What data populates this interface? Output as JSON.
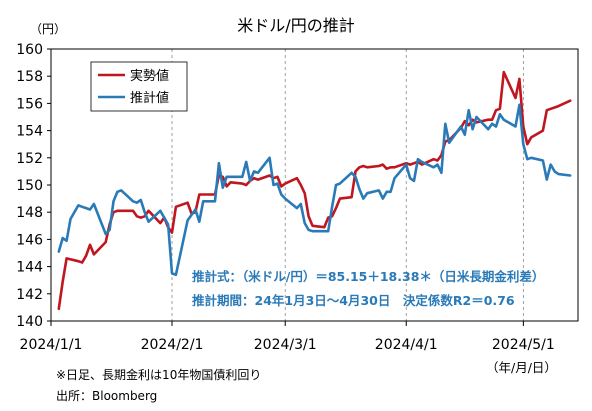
{
  "chart_data": {
    "type": "line",
    "title": "米ドル/円の推計",
    "y_unit_label": "（円）",
    "x_unit_label": "（年/月/日）",
    "x_tick_labels": [
      "2024/1/1",
      "2024/2/1",
      "2024/3/1",
      "2024/4/1",
      "2024/5/1"
    ],
    "y_ticks": [
      140,
      142,
      144,
      146,
      148,
      150,
      152,
      154,
      156,
      158,
      160
    ],
    "ylim": [
      140,
      160
    ],
    "xlim": [
      "2024-01-01",
      "2024-05-15"
    ],
    "grid": "vertical dashed",
    "legend_placement": "top-left",
    "series": [
      {
        "name": "実勢値",
        "color": "#c0161f",
        "points": [
          [
            "2024-01-03",
            140.9
          ],
          [
            "2024-01-04",
            142.9
          ],
          [
            "2024-01-05",
            144.6
          ],
          [
            "2024-01-08",
            144.4
          ],
          [
            "2024-01-09",
            144.3
          ],
          [
            "2024-01-10",
            144.8
          ],
          [
            "2024-01-11",
            145.6
          ],
          [
            "2024-01-12",
            144.9
          ],
          [
            "2024-01-15",
            145.8
          ],
          [
            "2024-01-16",
            147.1
          ],
          [
            "2024-01-17",
            148.0
          ],
          [
            "2024-01-18",
            148.1
          ],
          [
            "2024-01-19",
            148.1
          ],
          [
            "2024-01-22",
            148.1
          ],
          [
            "2024-01-23",
            147.7
          ],
          [
            "2024-01-24",
            147.6
          ],
          [
            "2024-01-25",
            147.7
          ],
          [
            "2024-01-26",
            148.1
          ],
          [
            "2024-01-29",
            147.2
          ],
          [
            "2024-01-30",
            147.6
          ],
          [
            "2024-01-31",
            146.9
          ],
          [
            "2024-02-01",
            146.5
          ],
          [
            "2024-02-02",
            148.4
          ],
          [
            "2024-02-05",
            148.7
          ],
          [
            "2024-02-06",
            147.9
          ],
          [
            "2024-02-07",
            148.0
          ],
          [
            "2024-02-08",
            149.3
          ],
          [
            "2024-02-09",
            149.3
          ],
          [
            "2024-02-12",
            149.3
          ],
          [
            "2024-02-13",
            150.7
          ],
          [
            "2024-02-14",
            150.6
          ],
          [
            "2024-02-15",
            149.9
          ],
          [
            "2024-02-16",
            150.2
          ],
          [
            "2024-02-19",
            150.1
          ],
          [
            "2024-02-20",
            150.0
          ],
          [
            "2024-02-21",
            150.3
          ],
          [
            "2024-02-22",
            150.5
          ],
          [
            "2024-02-23",
            150.4
          ],
          [
            "2024-02-26",
            150.7
          ],
          [
            "2024-02-27",
            150.5
          ],
          [
            "2024-02-28",
            150.6
          ],
          [
            "2024-02-29",
            149.9
          ],
          [
            "2024-03-01",
            150.1
          ],
          [
            "2024-03-04",
            150.5
          ],
          [
            "2024-03-05",
            150.0
          ],
          [
            "2024-03-06",
            149.4
          ],
          [
            "2024-03-07",
            147.7
          ],
          [
            "2024-03-08",
            147.0
          ],
          [
            "2024-03-11",
            146.9
          ],
          [
            "2024-03-12",
            147.6
          ],
          [
            "2024-03-13",
            147.7
          ],
          [
            "2024-03-14",
            148.3
          ],
          [
            "2024-03-15",
            149.0
          ],
          [
            "2024-03-18",
            149.1
          ],
          [
            "2024-03-19",
            151.0
          ],
          [
            "2024-03-20",
            151.3
          ],
          [
            "2024-03-21",
            151.4
          ],
          [
            "2024-03-22",
            151.3
          ],
          [
            "2024-03-25",
            151.4
          ],
          [
            "2024-03-26",
            151.5
          ],
          [
            "2024-03-27",
            151.2
          ],
          [
            "2024-03-28",
            151.3
          ],
          [
            "2024-03-29",
            151.3
          ],
          [
            "2024-04-01",
            151.6
          ],
          [
            "2024-04-02",
            151.5
          ],
          [
            "2024-04-03",
            151.6
          ],
          [
            "2024-04-04",
            151.7
          ],
          [
            "2024-04-05",
            151.5
          ],
          [
            "2024-04-08",
            151.9
          ],
          [
            "2024-04-09",
            151.8
          ],
          [
            "2024-04-10",
            152.2
          ],
          [
            "2024-04-11",
            153.2
          ],
          [
            "2024-04-12",
            153.3
          ],
          [
            "2024-04-15",
            154.2
          ],
          [
            "2024-04-16",
            154.7
          ],
          [
            "2024-04-17",
            154.4
          ],
          [
            "2024-04-18",
            154.8
          ],
          [
            "2024-04-19",
            154.6
          ],
          [
            "2024-04-22",
            154.8
          ],
          [
            "2024-04-23",
            154.8
          ],
          [
            "2024-04-24",
            155.5
          ],
          [
            "2024-04-25",
            155.6
          ],
          [
            "2024-04-26",
            158.3
          ],
          [
            "2024-04-29",
            156.4
          ],
          [
            "2024-04-30",
            157.8
          ],
          [
            "2024-05-01",
            154.3
          ],
          [
            "2024-05-02",
            153.0
          ],
          [
            "2024-05-03",
            153.5
          ],
          [
            "2024-05-06",
            154.0
          ],
          [
            "2024-05-07",
            155.5
          ],
          [
            "2024-05-08",
            155.6
          ],
          [
            "2024-05-09",
            155.7
          ],
          [
            "2024-05-10",
            155.8
          ],
          [
            "2024-05-13",
            156.2
          ]
        ]
      },
      {
        "name": "推計値",
        "color": "#2a7ab8",
        "points": [
          [
            "2024-01-03",
            145.1
          ],
          [
            "2024-01-04",
            146.1
          ],
          [
            "2024-01-05",
            145.9
          ],
          [
            "2024-01-06",
            147.5
          ],
          [
            "2024-01-08",
            148.5
          ],
          [
            "2024-01-09",
            148.4
          ],
          [
            "2024-01-10",
            148.3
          ],
          [
            "2024-01-11",
            148.2
          ],
          [
            "2024-01-12",
            148.6
          ],
          [
            "2024-01-15",
            146.4
          ],
          [
            "2024-01-16",
            146.7
          ],
          [
            "2024-01-17",
            148.8
          ],
          [
            "2024-01-18",
            149.5
          ],
          [
            "2024-01-19",
            149.6
          ],
          [
            "2024-01-22",
            148.8
          ],
          [
            "2024-01-23",
            148.7
          ],
          [
            "2024-01-24",
            148.9
          ],
          [
            "2024-01-25",
            148.0
          ],
          [
            "2024-01-26",
            147.3
          ],
          [
            "2024-01-29",
            148.1
          ],
          [
            "2024-01-30",
            147.6
          ],
          [
            "2024-01-31",
            147.1
          ],
          [
            "2024-02-01",
            143.5
          ],
          [
            "2024-02-02",
            143.4
          ],
          [
            "2024-02-05",
            147.4
          ],
          [
            "2024-02-06",
            147.8
          ],
          [
            "2024-02-07",
            148.2
          ],
          [
            "2024-02-08",
            147.3
          ],
          [
            "2024-02-09",
            148.8
          ],
          [
            "2024-02-12",
            148.8
          ],
          [
            "2024-02-13",
            151.6
          ],
          [
            "2024-02-14",
            149.8
          ],
          [
            "2024-02-15",
            150.6
          ],
          [
            "2024-02-16",
            150.6
          ],
          [
            "2024-02-19",
            150.6
          ],
          [
            "2024-02-20",
            151.7
          ],
          [
            "2024-02-21",
            150.3
          ],
          [
            "2024-02-22",
            151.0
          ],
          [
            "2024-02-23",
            150.9
          ],
          [
            "2024-02-26",
            152.0
          ],
          [
            "2024-02-27",
            150.0
          ],
          [
            "2024-02-28",
            150.1
          ],
          [
            "2024-02-29",
            149.3
          ],
          [
            "2024-03-01",
            149.0
          ],
          [
            "2024-03-04",
            148.3
          ],
          [
            "2024-03-05",
            148.6
          ],
          [
            "2024-03-06",
            147.2
          ],
          [
            "2024-03-07",
            146.7
          ],
          [
            "2024-03-08",
            146.6
          ],
          [
            "2024-03-11",
            146.6
          ],
          [
            "2024-03-12",
            146.6
          ],
          [
            "2024-03-13",
            148.4
          ],
          [
            "2024-03-14",
            150.0
          ],
          [
            "2024-03-15",
            150.1
          ],
          [
            "2024-03-18",
            150.9
          ],
          [
            "2024-03-19",
            150.6
          ],
          [
            "2024-03-20",
            149.7
          ],
          [
            "2024-03-21",
            149.0
          ],
          [
            "2024-03-22",
            149.4
          ],
          [
            "2024-03-25",
            149.6
          ],
          [
            "2024-03-26",
            149.0
          ],
          [
            "2024-03-27",
            149.5
          ],
          [
            "2024-03-28",
            149.5
          ],
          [
            "2024-03-29",
            150.5
          ],
          [
            "2024-04-01",
            151.5
          ],
          [
            "2024-04-02",
            150.5
          ],
          [
            "2024-04-03",
            150.3
          ],
          [
            "2024-04-04",
            151.9
          ],
          [
            "2024-04-05",
            151.7
          ],
          [
            "2024-04-08",
            151.3
          ],
          [
            "2024-04-09",
            151.5
          ],
          [
            "2024-04-10",
            150.9
          ],
          [
            "2024-04-11",
            154.5
          ],
          [
            "2024-04-12",
            153.1
          ],
          [
            "2024-04-15",
            154.3
          ],
          [
            "2024-04-16",
            153.7
          ],
          [
            "2024-04-17",
            155.5
          ],
          [
            "2024-04-18",
            154.1
          ],
          [
            "2024-04-19",
            155.0
          ],
          [
            "2024-04-22",
            154.1
          ],
          [
            "2024-04-23",
            154.5
          ],
          [
            "2024-04-24",
            154.3
          ],
          [
            "2024-04-25",
            155.2
          ],
          [
            "2024-04-26",
            154.8
          ],
          [
            "2024-04-29",
            154.3
          ],
          [
            "2024-04-30",
            155.9
          ],
          [
            "2024-05-01",
            153.0
          ],
          [
            "2024-05-02",
            151.9
          ],
          [
            "2024-05-03",
            152.0
          ],
          [
            "2024-05-06",
            151.8
          ],
          [
            "2024-05-07",
            150.4
          ],
          [
            "2024-05-08",
            151.5
          ],
          [
            "2024-05-09",
            151.0
          ],
          [
            "2024-05-10",
            150.8
          ],
          [
            "2024-05-13",
            150.7
          ]
        ]
      }
    ],
    "annotation_formula": "推計式：（米ドル/円）＝85.15＋18.38＊（日米長期金利差）",
    "annotation_period": "推計期間：24年1月3日～4月30日　決定係数R2＝0.76",
    "footnote": "※日足、長期金利は10年物国債利回り",
    "source": "出所：Bloomberg"
  }
}
